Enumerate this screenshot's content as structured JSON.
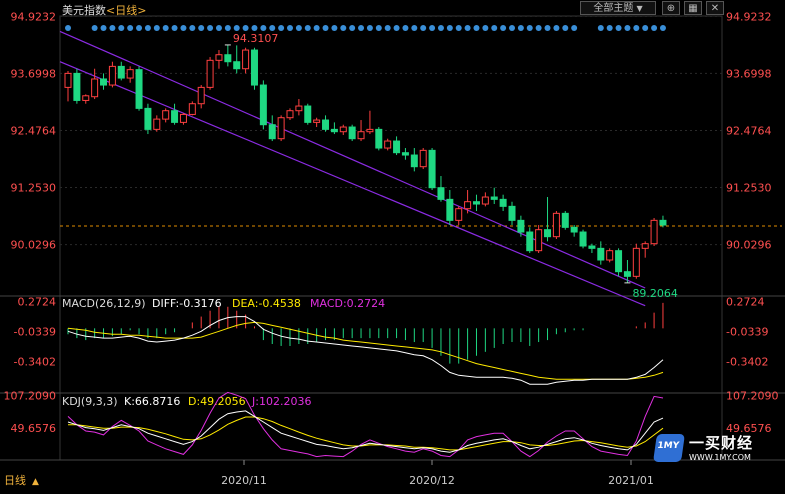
{
  "header": {
    "title": "美元指数",
    "period": "<日线>",
    "theme_label": "全部主题",
    "theme_arrow": "▼"
  },
  "chart_data": {
    "type": "candlestick",
    "ylim": [
      88.95,
      94.93
    ],
    "y_ticks": [
      "94.9232",
      "93.6998",
      "92.4764",
      "91.2530",
      "90.0296"
    ],
    "x_labels": [
      "日线",
      "2020/11",
      "2020/12",
      "2021/01"
    ],
    "high_label": "94.3107",
    "low_label": "89.2064",
    "last_price_line": 90.43,
    "channel": [
      {
        "from": [
          0,
          94.6
        ],
        "to": [
          65,
          89.1
        ]
      },
      {
        "from": [
          0,
          93.95
        ],
        "to": [
          65,
          88.72
        ]
      }
    ],
    "ohlc": [
      [
        93.4,
        93.75,
        93.1,
        93.7
      ],
      [
        93.7,
        93.8,
        93.05,
        93.12
      ],
      [
        93.12,
        93.25,
        93.05,
        93.22
      ],
      [
        93.2,
        93.8,
        93.15,
        93.58
      ],
      [
        93.58,
        93.7,
        93.35,
        93.45
      ],
      [
        93.45,
        93.95,
        93.4,
        93.85
      ],
      [
        93.85,
        93.95,
        93.55,
        93.6
      ],
      [
        93.6,
        93.85,
        93.5,
        93.78
      ],
      [
        93.78,
        93.85,
        92.9,
        92.95
      ],
      [
        92.95,
        93.05,
        92.4,
        92.5
      ],
      [
        92.5,
        92.8,
        92.45,
        92.72
      ],
      [
        92.72,
        92.95,
        92.65,
        92.9
      ],
      [
        92.9,
        93.05,
        92.6,
        92.65
      ],
      [
        92.65,
        92.85,
        92.6,
        92.82
      ],
      [
        92.82,
        93.1,
        92.8,
        93.05
      ],
      [
        93.05,
        93.45,
        92.95,
        93.4
      ],
      [
        93.4,
        94.05,
        93.35,
        93.98
      ],
      [
        93.98,
        94.2,
        93.8,
        94.1
      ],
      [
        94.1,
        94.31,
        93.85,
        93.95
      ],
      [
        93.95,
        94.3,
        93.7,
        93.8
      ],
      [
        93.8,
        94.25,
        93.7,
        94.2
      ],
      [
        94.2,
        94.25,
        93.35,
        93.45
      ],
      [
        93.45,
        93.55,
        92.5,
        92.6
      ],
      [
        92.6,
        92.8,
        92.25,
        92.3
      ],
      [
        92.3,
        92.8,
        92.25,
        92.75
      ],
      [
        92.75,
        92.95,
        92.7,
        92.9
      ],
      [
        92.9,
        93.15,
        92.8,
        93.0
      ],
      [
        93.0,
        93.05,
        92.6,
        92.65
      ],
      [
        92.65,
        92.75,
        92.55,
        92.7
      ],
      [
        92.7,
        92.8,
        92.45,
        92.5
      ],
      [
        92.5,
        92.65,
        92.4,
        92.45
      ],
      [
        92.45,
        92.6,
        92.38,
        92.55
      ],
      [
        92.55,
        92.6,
        92.25,
        92.3
      ],
      [
        92.3,
        92.7,
        92.25,
        92.45
      ],
      [
        92.45,
        92.9,
        92.4,
        92.5
      ],
      [
        92.5,
        92.55,
        92.05,
        92.1
      ],
      [
        92.1,
        92.3,
        92.05,
        92.25
      ],
      [
        92.25,
        92.35,
        91.95,
        92.0
      ],
      [
        92.0,
        92.1,
        91.85,
        91.95
      ],
      [
        91.95,
        92.1,
        91.6,
        91.7
      ],
      [
        91.7,
        92.1,
        91.65,
        92.05
      ],
      [
        92.05,
        92.1,
        91.2,
        91.25
      ],
      [
        91.25,
        91.5,
        90.95,
        91.0
      ],
      [
        91.0,
        91.2,
        90.45,
        90.55
      ],
      [
        90.55,
        90.85,
        90.45,
        90.8
      ],
      [
        90.8,
        91.2,
        90.7,
        90.95
      ],
      [
        90.95,
        91.1,
        90.75,
        90.9
      ],
      [
        90.9,
        91.15,
        90.85,
        91.05
      ],
      [
        91.05,
        91.25,
        90.9,
        91.0
      ],
      [
        91.0,
        91.1,
        90.75,
        90.85
      ],
      [
        90.85,
        90.95,
        90.45,
        90.55
      ],
      [
        90.55,
        90.65,
        90.2,
        90.3
      ],
      [
        90.3,
        90.4,
        89.85,
        89.9
      ],
      [
        89.9,
        90.45,
        89.85,
        90.35
      ],
      [
        90.35,
        91.05,
        90.1,
        90.2
      ],
      [
        90.2,
        90.75,
        90.15,
        90.7
      ],
      [
        90.7,
        90.75,
        90.35,
        90.4
      ],
      [
        90.4,
        90.45,
        90.2,
        90.3
      ],
      [
        90.3,
        90.35,
        89.95,
        90.0
      ],
      [
        90.0,
        90.05,
        89.85,
        89.95
      ],
      [
        89.95,
        90.1,
        89.6,
        89.7
      ],
      [
        89.7,
        89.95,
        89.65,
        89.9
      ],
      [
        89.9,
        89.95,
        89.35,
        89.45
      ],
      [
        89.45,
        89.7,
        89.21,
        89.35
      ],
      [
        89.35,
        90.05,
        89.3,
        89.95
      ],
      [
        89.95,
        90.1,
        89.75,
        90.05
      ],
      [
        90.05,
        90.6,
        90.0,
        90.55
      ],
      [
        90.55,
        90.65,
        90.4,
        90.45
      ]
    ],
    "macd": {
      "label": "MACD(26,12,9)",
      "diff_label": "DIFF:-0.3176",
      "dea_label": "DEA:-0.4538",
      "macd_label": "MACD:0.2724",
      "ylim": [
        -0.65,
        0.33
      ],
      "y_ticks": [
        "0.2724",
        "-0.0339",
        "-0.3402"
      ],
      "diff": [
        -0.03,
        -0.06,
        -0.08,
        -0.09,
        -0.1,
        -0.1,
        -0.09,
        -0.08,
        -0.1,
        -0.13,
        -0.14,
        -0.13,
        -0.12,
        -0.1,
        -0.07,
        -0.03,
        0.03,
        0.08,
        0.11,
        0.12,
        0.12,
        0.07,
        -0.01,
        -0.05,
        -0.08,
        -0.1,
        -0.11,
        -0.13,
        -0.14,
        -0.15,
        -0.16,
        -0.17,
        -0.18,
        -0.19,
        -0.2,
        -0.21,
        -0.22,
        -0.23,
        -0.25,
        -0.27,
        -0.28,
        -0.32,
        -0.38,
        -0.45,
        -0.48,
        -0.49,
        -0.5,
        -0.5,
        -0.5,
        -0.5,
        -0.51,
        -0.53,
        -0.57,
        -0.57,
        -0.57,
        -0.55,
        -0.54,
        -0.53,
        -0.53,
        -0.52,
        -0.52,
        -0.52,
        -0.52,
        -0.52,
        -0.5,
        -0.47,
        -0.4,
        -0.32
      ],
      "dea": [
        0.0,
        -0.01,
        -0.02,
        -0.04,
        -0.05,
        -0.06,
        -0.06,
        -0.07,
        -0.07,
        -0.08,
        -0.09,
        -0.1,
        -0.1,
        -0.1,
        -0.1,
        -0.09,
        -0.06,
        -0.03,
        0.0,
        0.03,
        0.05,
        0.06,
        0.05,
        0.03,
        0.01,
        -0.01,
        -0.03,
        -0.05,
        -0.07,
        -0.09,
        -0.1,
        -0.12,
        -0.13,
        -0.14,
        -0.15,
        -0.16,
        -0.17,
        -0.18,
        -0.19,
        -0.2,
        -0.21,
        -0.22,
        -0.24,
        -0.27,
        -0.3,
        -0.33,
        -0.36,
        -0.38,
        -0.4,
        -0.42,
        -0.44,
        -0.46,
        -0.48,
        -0.5,
        -0.51,
        -0.52,
        -0.52,
        -0.52,
        -0.52,
        -0.52,
        -0.52,
        -0.52,
        -0.52,
        -0.52,
        -0.51,
        -0.5,
        -0.48,
        -0.45
      ]
    },
    "kdj": {
      "label": "KDJ(9,3,3)",
      "k_label": "K:66.8716",
      "d_label": "D:49.2056",
      "j_label": "J:102.2036",
      "ylim": [
        -8,
        112
      ],
      "y_ticks": [
        "107.2090",
        "49.6576"
      ],
      "k": [
        60,
        55,
        50,
        48,
        45,
        50,
        55,
        52,
        48,
        40,
        35,
        30,
        25,
        20,
        25,
        35,
        50,
        65,
        75,
        78,
        80,
        70,
        60,
        50,
        40,
        35,
        30,
        25,
        20,
        18,
        15,
        12,
        14,
        18,
        22,
        20,
        18,
        16,
        14,
        12,
        14,
        12,
        8,
        6,
        10,
        18,
        22,
        25,
        28,
        30,
        25,
        18,
        12,
        15,
        20,
        25,
        30,
        32,
        28,
        22,
        18,
        15,
        12,
        10,
        20,
        40,
        60,
        67
      ],
      "d": [
        55,
        55,
        53,
        51,
        49,
        49,
        51,
        51,
        50,
        47,
        43,
        39,
        34,
        29,
        28,
        30,
        37,
        46,
        56,
        63,
        69,
        69,
        66,
        61,
        54,
        48,
        42,
        36,
        31,
        27,
        23,
        19,
        17,
        17,
        19,
        19,
        19,
        18,
        17,
        15,
        15,
        14,
        12,
        10,
        10,
        13,
        16,
        19,
        22,
        25,
        25,
        23,
        19,
        18,
        18,
        20,
        23,
        26,
        27,
        25,
        23,
        20,
        17,
        15,
        17,
        25,
        37,
        49
      ],
      "j": [
        70,
        55,
        44,
        42,
        37,
        52,
        63,
        54,
        44,
        26,
        19,
        12,
        7,
        2,
        19,
        45,
        76,
        103,
        113,
        108,
        102,
        72,
        48,
        28,
        12,
        9,
        6,
        3,
        -2,
        0,
        -1,
        -2,
        8,
        20,
        28,
        22,
        16,
        12,
        8,
        6,
        12,
        8,
        0,
        -2,
        10,
        28,
        34,
        37,
        40,
        40,
        25,
        8,
        -2,
        9,
        24,
        35,
        44,
        44,
        30,
        16,
        8,
        5,
        2,
        0,
        26,
        70,
        106,
        103
      ]
    }
  },
  "logo": {
    "mark": "1MY",
    "name": "一买财经",
    "url": "WWW.1MY.COM"
  },
  "colors": {
    "up": "#ff4040",
    "down": "#1fd883",
    "channel": "#8a2be2",
    "price_tick": "#ff5050",
    "diff": "#ffffff",
    "dea": "#ffea00",
    "macd": "#e030e0",
    "k": "#ffffff",
    "d": "#ffea00",
    "j": "#e030e0",
    "dots": "#3a8fd8",
    "last_line": "#e08b00"
  }
}
